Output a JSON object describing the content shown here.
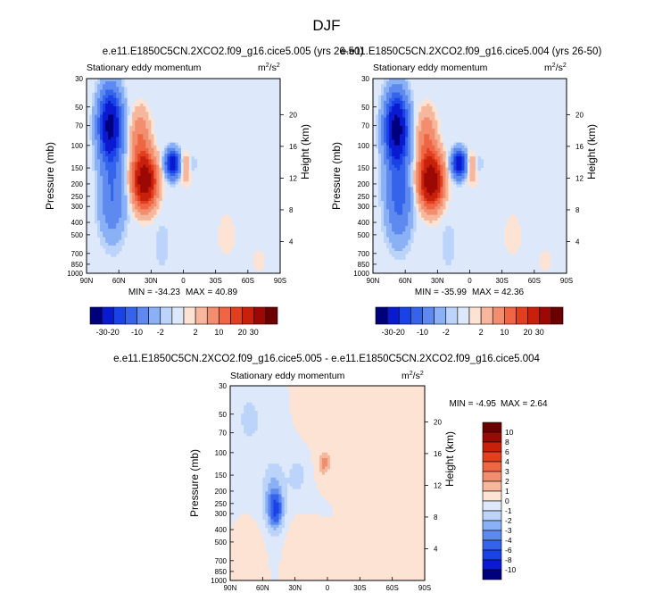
{
  "page_title": "DJF",
  "chart_data": [
    {
      "type": "contour",
      "title": "e.e11.E1850C5CN.2XCO2.f09_g16.cice5.005 (yrs 26-50)",
      "subtitle_left": "Stationary eddy momentum",
      "subtitle_right": "m",
      "units_sup": "2",
      "units_div": "/s",
      "units_sup2": "2",
      "ylabel": "Pressure (mb)",
      "ylabel_right": "Height (km)",
      "x_ticks": [
        "90N",
        "60N",
        "30N",
        "0",
        "30S",
        "60S",
        "90S"
      ],
      "x_tick_values": [
        90,
        60,
        30,
        0,
        -30,
        -60,
        -90
      ],
      "y_ticks": [
        "30",
        "50",
        "70",
        "100",
        "150",
        "200",
        "250",
        "300",
        "400",
        "500",
        "700",
        "850",
        "1000"
      ],
      "y_tick_values": [
        30,
        50,
        70,
        100,
        150,
        200,
        250,
        300,
        400,
        500,
        700,
        850,
        1000
      ],
      "height_ticks": [
        "20",
        "16",
        "12",
        "8",
        "4"
      ],
      "height_tick_values": [
        20,
        16,
        12,
        8,
        4
      ],
      "min_label": "MIN = -34.23",
      "max_label": "MAX = 40.89",
      "min": -34.23,
      "max": 40.89,
      "features": [
        {
          "lat": 68,
          "p": 70,
          "value": -34,
          "wlat": 7,
          "wlog": 0.42
        },
        {
          "lat": 66,
          "p": 250,
          "value": -10,
          "wlat": 8,
          "wlog": 0.5
        },
        {
          "lat": 36,
          "p": 190,
          "value": 40,
          "wlat": 7,
          "wlog": 0.3
        },
        {
          "lat": 40,
          "p": 90,
          "value": 10,
          "wlat": 6,
          "wlog": 0.35
        },
        {
          "lat": 10,
          "p": 140,
          "value": -28,
          "wlat": 4.5,
          "wlog": 0.16
        },
        {
          "lat": -2,
          "p": 150,
          "value": 5,
          "wlat": 4,
          "wlog": 0.2
        },
        {
          "lat": -8,
          "p": 140,
          "value": -3,
          "wlat": 3,
          "wlog": 0.12
        },
        {
          "lat": 20,
          "p": 600,
          "value": -2,
          "wlat": 5,
          "wlog": 0.3
        },
        {
          "lat": -40,
          "p": 500,
          "value": 1.5,
          "wlat": 8,
          "wlog": 0.4
        },
        {
          "lat": -70,
          "p": 800,
          "value": 1.5,
          "wlat": 6,
          "wlog": 0.2
        }
      ]
    },
    {
      "type": "contour",
      "title": "e.e11.E1850C5CN.2XCO2.f09_g16.cice5.004 (yrs 26-50)",
      "subtitle_left": "Stationary eddy momentum",
      "subtitle_right": "m",
      "units_sup": "2",
      "units_div": "/s",
      "units_sup2": "2",
      "ylabel": "Pressure (mb)",
      "ylabel_right": "Height (km)",
      "x_ticks": [
        "90N",
        "60N",
        "30N",
        "0",
        "30S",
        "60S",
        "90S"
      ],
      "x_tick_values": [
        90,
        60,
        30,
        0,
        -30,
        -60,
        -90
      ],
      "y_ticks": [
        "30",
        "50",
        "70",
        "100",
        "150",
        "200",
        "250",
        "300",
        "400",
        "500",
        "700",
        "850",
        "1000"
      ],
      "y_tick_values": [
        30,
        50,
        70,
        100,
        150,
        200,
        250,
        300,
        400,
        500,
        700,
        850,
        1000
      ],
      "height_ticks": [
        "20",
        "16",
        "12",
        "8",
        "4"
      ],
      "height_tick_values": [
        20,
        16,
        12,
        8,
        4
      ],
      "min_label": "MIN = -35.99",
      "max_label": "MAX = 42.36",
      "min": -35.99,
      "max": 42.36,
      "features": [
        {
          "lat": 68,
          "p": 75,
          "value": -36,
          "wlat": 7,
          "wlog": 0.42
        },
        {
          "lat": 66,
          "p": 260,
          "value": -12,
          "wlat": 8,
          "wlog": 0.5
        },
        {
          "lat": 36,
          "p": 190,
          "value": 42,
          "wlat": 7,
          "wlog": 0.3
        },
        {
          "lat": 40,
          "p": 90,
          "value": 10,
          "wlat": 6,
          "wlog": 0.35
        },
        {
          "lat": 10,
          "p": 140,
          "value": -28,
          "wlat": 4.5,
          "wlog": 0.16
        },
        {
          "lat": -2,
          "p": 150,
          "value": 5,
          "wlat": 4,
          "wlog": 0.2
        },
        {
          "lat": -8,
          "p": 140,
          "value": -3,
          "wlat": 3,
          "wlog": 0.12
        },
        {
          "lat": 20,
          "p": 600,
          "value": -2,
          "wlat": 5,
          "wlog": 0.3
        },
        {
          "lat": -40,
          "p": 500,
          "value": 1.5,
          "wlat": 8,
          "wlog": 0.4
        },
        {
          "lat": -70,
          "p": 800,
          "value": 1.5,
          "wlat": 6,
          "wlog": 0.2
        }
      ]
    },
    {
      "type": "contour",
      "title": "e.e11.E1850C5CN.2XCO2.f09_g16.cice5.005 - e.e11.E1850C5CN.2XCO2.f09_g16.cice5.004",
      "subtitle_left": "Stationary eddy momentum",
      "subtitle_right": "m",
      "units_sup": "2",
      "units_div": "/s",
      "units_sup2": "2",
      "ylabel": "Pressure (mb)",
      "ylabel_right": "Height (km)",
      "x_ticks": [
        "90N",
        "60N",
        "30N",
        "0",
        "30S",
        "60S",
        "90S"
      ],
      "x_tick_values": [
        90,
        60,
        30,
        0,
        -30,
        -60,
        -90
      ],
      "y_ticks": [
        "30",
        "50",
        "70",
        "100",
        "150",
        "200",
        "250",
        "300",
        "400",
        "500",
        "700",
        "850",
        "1000"
      ],
      "y_tick_values": [
        30,
        50,
        70,
        100,
        150,
        200,
        250,
        300,
        400,
        500,
        700,
        850,
        1000
      ],
      "height_ticks": [
        "20",
        "16",
        "12",
        "8",
        "4"
      ],
      "height_tick_values": [
        20,
        16,
        12,
        8,
        4
      ],
      "min_label": "MIN =  -4.95",
      "max_label": "MAX =   2.64",
      "min": -4.95,
      "max": 2.64,
      "features": [
        {
          "lat": 48,
          "p": 280,
          "value": -5,
          "wlat": 4,
          "wlog": 0.2
        },
        {
          "lat": 50,
          "p": 220,
          "value": -2.5,
          "wlat": 8,
          "wlog": 0.45
        },
        {
          "lat": 72,
          "p": 55,
          "value": -2,
          "wlat": 6,
          "wlog": 0.25
        },
        {
          "lat": 28,
          "p": 150,
          "value": -1.5,
          "wlat": 6,
          "wlog": 0.25
        },
        {
          "lat": 3,
          "p": 120,
          "value": 2.6,
          "wlat": 4,
          "wlog": 0.14
        },
        {
          "lat": 12,
          "p": 50,
          "value": 1,
          "wlat": 6,
          "wlog": 0.25
        },
        {
          "lat": 66,
          "p": 600,
          "value": 1,
          "wlat": 5,
          "wlog": 0.3
        },
        {
          "lat": -55,
          "p": 300,
          "value": 1,
          "wlat": 8,
          "wlog": 0.5
        },
        {
          "lat": 30,
          "p": 600,
          "value": 1,
          "wlat": 6,
          "wlog": 0.3
        }
      ]
    }
  ],
  "colorbar_top": {
    "type": "colorbar",
    "orientation": "horizontal",
    "levels": [
      -30,
      -20,
      -15,
      -10,
      -5,
      -2,
      -1,
      1,
      2,
      5,
      10,
      15,
      20,
      30
    ],
    "labels": [
      "-30",
      "-20",
      "-10",
      "-2",
      "2",
      "10",
      "20",
      "30"
    ],
    "label_levels": [
      -30,
      -20,
      -10,
      -2,
      2,
      10,
      20,
      30
    ],
    "colors": [
      "#00007f",
      "#0a1ad0",
      "#1a42e6",
      "#3564ea",
      "#5e8af0",
      "#8ab0f5",
      "#bcd4fa",
      "#dde9fb",
      "#fde3d4",
      "#f6b79c",
      "#f28e6e",
      "#ee6644",
      "#e23f21",
      "#c7210c",
      "#9c0905",
      "#6b0000"
    ]
  },
  "colorbar_diff": {
    "type": "colorbar",
    "orientation": "vertical",
    "levels": [
      -10,
      -8,
      -6,
      -4,
      -3,
      -2,
      -1,
      0,
      1,
      2,
      3,
      4,
      6,
      8,
      10
    ],
    "labels": [
      "10",
      "8",
      "6",
      "4",
      "3",
      "2",
      "1",
      "0",
      "-1",
      "-2",
      "-3",
      "-4",
      "-6",
      "-8",
      "-10"
    ],
    "colors": [
      "#00007f",
      "#0a1ad0",
      "#1a42e6",
      "#3564ea",
      "#5e8af0",
      "#8ab0f5",
      "#bcd4fa",
      "#dde9fb",
      "#fde3d4",
      "#f6b79c",
      "#f28e6e",
      "#ee6644",
      "#e23f21",
      "#c7210c",
      "#9c0905",
      "#6b0000"
    ]
  },
  "colors": {
    "background": "#ffffff",
    "text": "#000000"
  }
}
